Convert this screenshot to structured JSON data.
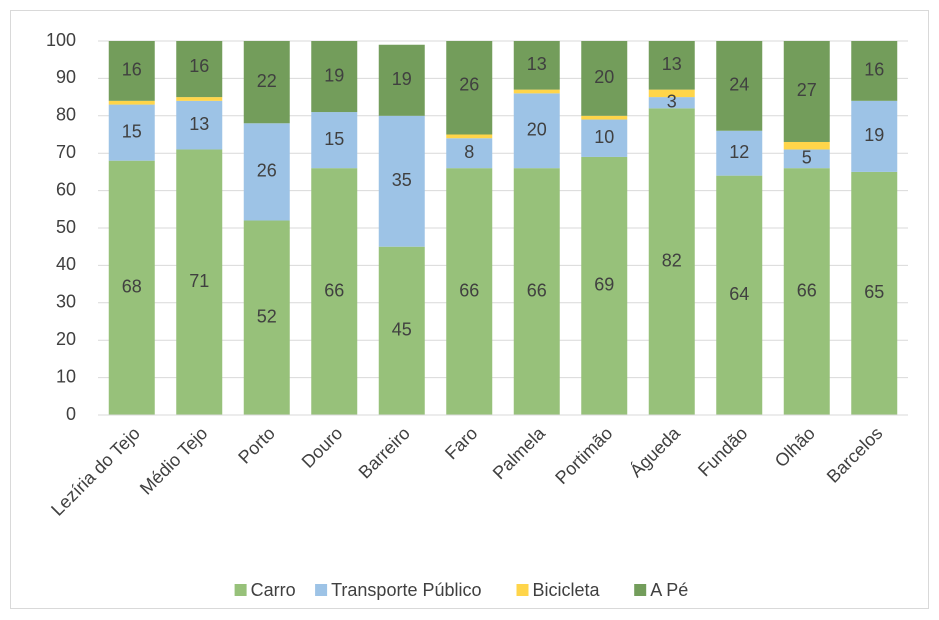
{
  "chart_data": {
    "type": "stacked_bar",
    "categories": [
      "Lezíria do Tejo",
      "Médio Tejo",
      "Porto",
      "Douro",
      "Barreiro",
      "Faro",
      "Palmela",
      "Portimão",
      "Águeda",
      "Fundão",
      "Olhão",
      "Barcelos"
    ],
    "series": [
      {
        "name": "Carro",
        "color": "#97c17a",
        "show_labels": true,
        "values": [
          68,
          71,
          52,
          66,
          45,
          66,
          66,
          69,
          82,
          64,
          66,
          65
        ]
      },
      {
        "name": "Transporte Público",
        "color": "#9dc3e6",
        "show_labels": true,
        "values": [
          15,
          13,
          26,
          15,
          35,
          8,
          20,
          10,
          3,
          12,
          5,
          19
        ]
      },
      {
        "name": "Bicicleta",
        "color": "#ffd54a",
        "show_labels": false,
        "values": [
          1,
          1,
          0,
          0,
          0,
          1,
          1,
          1,
          2,
          0,
          2,
          0
        ]
      },
      {
        "name": "A Pé",
        "color": "#739d5b",
        "show_labels": true,
        "values": [
          16,
          16,
          22,
          19,
          19,
          26,
          13,
          20,
          13,
          24,
          27,
          16
        ]
      }
    ],
    "ylim": [
      0,
      100
    ],
    "yticks": [
      0,
      10,
      20,
      30,
      40,
      50,
      60,
      70,
      80,
      90,
      100
    ],
    "grid": true,
    "legend": "bottom"
  }
}
